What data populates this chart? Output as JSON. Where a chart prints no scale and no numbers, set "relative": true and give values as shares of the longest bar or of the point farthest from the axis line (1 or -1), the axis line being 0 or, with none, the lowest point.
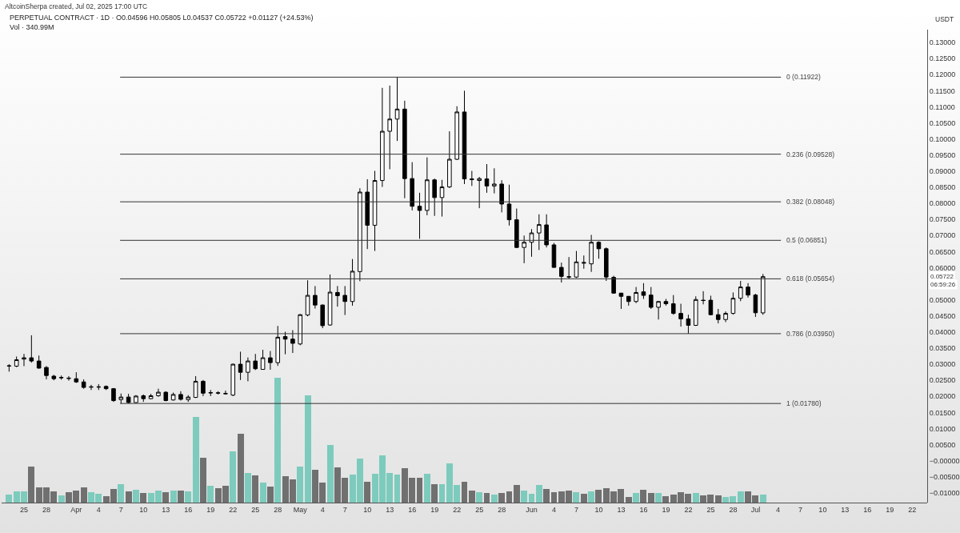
{
  "chart_data": [
    {
      "type": "candlestick",
      "title": "PERPETUAL CONTRACT · 1D · O0.04596 H0.05805 L0.04537 C0.05722 +0.01127 (+24.53%)",
      "subtitle": "Vol · 340.99M",
      "ylabel": "USDT",
      "annotations": [
        "AltcoinSherpa created, Jul 02, 2025 17:00 UTC",
        {
          "text": "0.05722",
          "y": 0.05722
        },
        "06:59:26"
      ],
      "tick_labels": "y",
      "xlim": [
        "2025-03-22",
        "2025-07-24"
      ],
      "ylim": [
        -0.013,
        0.134
      ],
      "yticks": [
        {
          "value": 0.13,
          "label": "0.13000"
        },
        {
          "value": 0.125,
          "label": "0.12500"
        },
        {
          "value": 0.12,
          "label": "0.12000"
        },
        {
          "value": 0.115,
          "label": "0.11500"
        },
        {
          "value": 0.11,
          "label": "0.11000"
        },
        {
          "value": 0.105,
          "label": "0.10500"
        },
        {
          "value": 0.1,
          "label": "0.10000"
        },
        {
          "value": 0.095,
          "label": "0.09500"
        },
        {
          "value": 0.09,
          "label": "0.09000"
        },
        {
          "value": 0.085,
          "label": "0.08500"
        },
        {
          "value": 0.08,
          "label": "0.08000"
        },
        {
          "value": 0.075,
          "label": "0.07500"
        },
        {
          "value": 0.07,
          "label": "0.07000"
        },
        {
          "value": 0.065,
          "label": "0.06500"
        },
        {
          "value": 0.06,
          "label": "0.06000"
        },
        {
          "value": 0.05,
          "label": "0.05000"
        },
        {
          "value": 0.045,
          "label": "0.04500"
        },
        {
          "value": 0.04,
          "label": "0.04000"
        },
        {
          "value": 0.035,
          "label": "0.03500"
        },
        {
          "value": 0.03,
          "label": "0.03000"
        },
        {
          "value": 0.025,
          "label": "0.02500"
        },
        {
          "value": 0.02,
          "label": "0.02000"
        },
        {
          "value": 0.015,
          "label": "0.01500"
        },
        {
          "value": 0.01,
          "label": "0.01000"
        },
        {
          "value": 0.005,
          "label": "0.00500"
        },
        {
          "value": 0,
          "label": "−0.00000"
        },
        {
          "value": -0.005,
          "label": "−0.00500"
        },
        {
          "value": -0.01,
          "label": "−0.01000"
        }
      ],
      "ref_lines": [
        {
          "axis": "y",
          "value": 0.11922,
          "label": "0 (0.11922)",
          "color": "#333333"
        },
        {
          "axis": "y",
          "value": 0.09528,
          "label": "0.236 (0.09528)",
          "color": "#333333"
        },
        {
          "axis": "y",
          "value": 0.08048,
          "label": "0.382 (0.08048)",
          "color": "#333333"
        },
        {
          "axis": "y",
          "value": 0.06851,
          "label": "0.5 (0.06851)",
          "color": "#333333"
        },
        {
          "axis": "y",
          "value": 0.05654,
          "label": "0.618 (0.05654)",
          "color": "#333333"
        },
        {
          "axis": "y",
          "value": 0.0395,
          "label": "0.786 (0.03950)",
          "color": "#333333"
        },
        {
          "axis": "y",
          "value": 0.0178,
          "label": "1 (0.01780)",
          "color": "#333333"
        }
      ],
      "x": [
        "2025-03-23",
        "2025-03-24",
        "2025-03-25",
        "2025-03-26",
        "2025-03-27",
        "2025-03-28",
        "2025-03-29",
        "2025-03-30",
        "2025-03-31",
        "2025-04-01",
        "2025-04-02",
        "2025-04-03",
        "2025-04-04",
        "2025-04-05",
        "2025-04-06",
        "2025-04-07",
        "2025-04-08",
        "2025-04-09",
        "2025-04-10",
        "2025-04-11",
        "2025-04-12",
        "2025-04-13",
        "2025-04-14",
        "2025-04-15",
        "2025-04-16",
        "2025-04-17",
        "2025-04-18",
        "2025-04-19",
        "2025-04-20",
        "2025-04-21",
        "2025-04-22",
        "2025-04-23",
        "2025-04-24",
        "2025-04-25",
        "2025-04-26",
        "2025-04-27",
        "2025-04-28",
        "2025-04-29",
        "2025-04-30",
        "2025-05-01",
        "2025-05-02",
        "2025-05-03",
        "2025-05-04",
        "2025-05-05",
        "2025-05-06",
        "2025-05-07",
        "2025-05-08",
        "2025-05-09",
        "2025-05-10",
        "2025-05-11",
        "2025-05-12",
        "2025-05-13",
        "2025-05-14",
        "2025-05-15",
        "2025-05-16",
        "2025-05-17",
        "2025-05-18",
        "2025-05-19",
        "2025-05-20",
        "2025-05-21",
        "2025-05-22",
        "2025-05-23",
        "2025-05-24",
        "2025-05-25",
        "2025-05-26",
        "2025-05-27",
        "2025-05-28",
        "2025-05-29",
        "2025-05-30",
        "2025-05-31",
        "2025-06-01",
        "2025-06-02",
        "2025-06-03",
        "2025-06-04",
        "2025-06-05",
        "2025-06-06",
        "2025-06-07",
        "2025-06-08",
        "2025-06-09",
        "2025-06-10",
        "2025-06-11",
        "2025-06-12",
        "2025-06-13",
        "2025-06-14",
        "2025-06-15",
        "2025-06-16",
        "2025-06-17",
        "2025-06-18",
        "2025-06-19",
        "2025-06-20",
        "2025-06-21",
        "2025-06-22",
        "2025-06-23",
        "2025-06-24",
        "2025-06-25",
        "2025-06-26",
        "2025-06-27",
        "2025-06-28",
        "2025-06-29",
        "2025-06-30",
        "2025-07-01",
        "2025-07-02"
      ],
      "ohlc": [
        [
          0.0294,
          0.03,
          0.0277,
          0.0295
        ],
        [
          0.0294,
          0.0324,
          0.0291,
          0.0314
        ],
        [
          0.0316,
          0.0332,
          0.0294,
          0.032
        ],
        [
          0.032,
          0.039,
          0.0305,
          0.031
        ],
        [
          0.031,
          0.0327,
          0.0286,
          0.0288
        ],
        [
          0.029,
          0.0294,
          0.0253,
          0.0265
        ],
        [
          0.0263,
          0.0267,
          0.025,
          0.0255
        ],
        [
          0.0259,
          0.0265,
          0.0252,
          0.0258
        ],
        [
          0.0257,
          0.0263,
          0.0249,
          0.0256
        ],
        [
          0.0255,
          0.0275,
          0.0242,
          0.0245
        ],
        [
          0.0245,
          0.0253,
          0.0224,
          0.0228
        ],
        [
          0.023,
          0.0236,
          0.022,
          0.0229
        ],
        [
          0.023,
          0.0238,
          0.022,
          0.0229
        ],
        [
          0.0231,
          0.0234,
          0.022,
          0.0224
        ],
        [
          0.0224,
          0.0226,
          0.0183,
          0.0187
        ],
        [
          0.019,
          0.0209,
          0.0178,
          0.0198
        ],
        [
          0.0198,
          0.0208,
          0.0179,
          0.0181
        ],
        [
          0.0181,
          0.0204,
          0.018,
          0.0201
        ],
        [
          0.0202,
          0.0206,
          0.0183,
          0.0193
        ],
        [
          0.0193,
          0.0208,
          0.0191,
          0.0202
        ],
        [
          0.0202,
          0.0224,
          0.0199,
          0.0213
        ],
        [
          0.0213,
          0.0216,
          0.0185,
          0.0187
        ],
        [
          0.0189,
          0.0212,
          0.0187,
          0.0206
        ],
        [
          0.0206,
          0.0216,
          0.0187,
          0.0191
        ],
        [
          0.019,
          0.0204,
          0.0183,
          0.0198
        ],
        [
          0.0197,
          0.0263,
          0.0195,
          0.0247
        ],
        [
          0.0247,
          0.0251,
          0.0201,
          0.021
        ],
        [
          0.0212,
          0.022,
          0.0201,
          0.0211
        ],
        [
          0.021,
          0.0216,
          0.0206,
          0.0211
        ],
        [
          0.0208,
          0.0218,
          0.0206,
          0.0209
        ],
        [
          0.0204,
          0.0302,
          0.0201,
          0.03
        ],
        [
          0.03,
          0.0339,
          0.0251,
          0.0275
        ],
        [
          0.0275,
          0.0321,
          0.0247,
          0.031
        ],
        [
          0.031,
          0.0332,
          0.0282,
          0.0286
        ],
        [
          0.0284,
          0.0345,
          0.0283,
          0.032
        ],
        [
          0.032,
          0.0341,
          0.0283,
          0.0305
        ],
        [
          0.0305,
          0.0419,
          0.0295,
          0.0384
        ],
        [
          0.0386,
          0.0401,
          0.0331,
          0.0378
        ],
        [
          0.0378,
          0.0406,
          0.0335,
          0.0365
        ],
        [
          0.0363,
          0.0456,
          0.0359,
          0.0454
        ],
        [
          0.0453,
          0.0561,
          0.0449,
          0.0514
        ],
        [
          0.0514,
          0.0543,
          0.0473,
          0.0484
        ],
        [
          0.0484,
          0.0486,
          0.0412,
          0.042
        ],
        [
          0.0422,
          0.0579,
          0.042,
          0.0524
        ],
        [
          0.0523,
          0.0543,
          0.0479,
          0.0513
        ],
        [
          0.0514,
          0.0543,
          0.0453,
          0.0495
        ],
        [
          0.0495,
          0.0627,
          0.0482,
          0.0589
        ],
        [
          0.0588,
          0.0847,
          0.0558,
          0.0835
        ],
        [
          0.0835,
          0.0875,
          0.0658,
          0.0732
        ],
        [
          0.0732,
          0.0901,
          0.0652,
          0.0871
        ],
        [
          0.0871,
          0.1159,
          0.0851,
          0.1024
        ],
        [
          0.1024,
          0.1166,
          0.0906,
          0.1062
        ],
        [
          0.1062,
          0.11922,
          0.0994,
          0.1093
        ],
        [
          0.1093,
          0.1119,
          0.0816,
          0.0877
        ],
        [
          0.0877,
          0.0928,
          0.0778,
          0.0791
        ],
        [
          0.0791,
          0.0833,
          0.069,
          0.0778
        ],
        [
          0.0778,
          0.0943,
          0.0763,
          0.0873
        ],
        [
          0.0873,
          0.0877,
          0.0761,
          0.0818
        ],
        [
          0.0818,
          0.0873,
          0.0759,
          0.0851
        ],
        [
          0.0851,
          0.1024,
          0.0848,
          0.0937
        ],
        [
          0.0937,
          0.1102,
          0.0935,
          0.1084
        ],
        [
          0.1084,
          0.115,
          0.086,
          0.0876
        ],
        [
          0.0876,
          0.0901,
          0.0854,
          0.0874
        ],
        [
          0.0871,
          0.0882,
          0.0785,
          0.0877
        ],
        [
          0.0876,
          0.0922,
          0.0833,
          0.0854
        ],
        [
          0.0854,
          0.0909,
          0.0831,
          0.086
        ],
        [
          0.086,
          0.0872,
          0.0772,
          0.0798
        ],
        [
          0.0798,
          0.0858,
          0.0731,
          0.0749
        ],
        [
          0.0749,
          0.0784,
          0.0661,
          0.0663
        ],
        [
          0.0663,
          0.07,
          0.0614,
          0.0679
        ],
        [
          0.0679,
          0.072,
          0.0634,
          0.0708
        ],
        [
          0.0708,
          0.0766,
          0.0655,
          0.0734
        ],
        [
          0.0733,
          0.0766,
          0.0663,
          0.0671
        ],
        [
          0.0671,
          0.0677,
          0.06,
          0.0601
        ],
        [
          0.0601,
          0.0616,
          0.0554,
          0.0573
        ],
        [
          0.0572,
          0.0633,
          0.0565,
          0.0571
        ],
        [
          0.0571,
          0.0652,
          0.0568,
          0.0618
        ],
        [
          0.0614,
          0.0638,
          0.0597,
          0.0616
        ],
        [
          0.0612,
          0.0702,
          0.0587,
          0.0679
        ],
        [
          0.0679,
          0.0682,
          0.0628,
          0.0659
        ],
        [
          0.0659,
          0.0663,
          0.0559,
          0.0571
        ],
        [
          0.057,
          0.0575,
          0.0519,
          0.0521
        ],
        [
          0.0521,
          0.0522,
          0.0472,
          0.0511
        ],
        [
          0.0511,
          0.0512,
          0.0482,
          0.0495
        ],
        [
          0.0495,
          0.054,
          0.049,
          0.0523
        ],
        [
          0.0525,
          0.0552,
          0.0503,
          0.0514
        ],
        [
          0.0515,
          0.054,
          0.0472,
          0.0477
        ],
        [
          0.0477,
          0.0496,
          0.0439,
          0.0495
        ],
        [
          0.0495,
          0.0503,
          0.0482,
          0.0488
        ],
        [
          0.0488,
          0.0515,
          0.0454,
          0.0458
        ],
        [
          0.0458,
          0.0488,
          0.0417,
          0.0441
        ],
        [
          0.0441,
          0.0454,
          0.0395,
          0.0421
        ],
        [
          0.0421,
          0.0511,
          0.0419,
          0.0501
        ],
        [
          0.0499,
          0.0527,
          0.0486,
          0.0498
        ],
        [
          0.0499,
          0.0513,
          0.0452,
          0.0454
        ],
        [
          0.0454,
          0.0472,
          0.0427,
          0.0439
        ],
        [
          0.0439,
          0.0464,
          0.0431,
          0.0458
        ],
        [
          0.0458,
          0.0523,
          0.0454,
          0.0505
        ],
        [
          0.0505,
          0.0559,
          0.0496,
          0.054
        ],
        [
          0.054,
          0.0552,
          0.0507,
          0.0515
        ],
        [
          0.0515,
          0.0519,
          0.0447,
          0.046
        ],
        [
          0.04596,
          0.05805,
          0.04537,
          0.05722
        ]
      ]
    },
    {
      "type": "bar",
      "relative": true,
      "tick_labels": "x",
      "xlim": [
        "2025-03-22",
        "2025-07-24"
      ],
      "xticks": [
        {
          "value": "2025-03-25",
          "label": "25"
        },
        {
          "value": "2025-03-28",
          "label": "28"
        },
        {
          "value": "2025-04-01",
          "label": "Apr"
        },
        {
          "value": "2025-04-04",
          "label": "4"
        },
        {
          "value": "2025-04-07",
          "label": "7"
        },
        {
          "value": "2025-04-10",
          "label": "10"
        },
        {
          "value": "2025-04-13",
          "label": "13"
        },
        {
          "value": "2025-04-16",
          "label": "16"
        },
        {
          "value": "2025-04-19",
          "label": "19"
        },
        {
          "value": "2025-04-22",
          "label": "22"
        },
        {
          "value": "2025-04-25",
          "label": "25"
        },
        {
          "value": "2025-04-28",
          "label": "28"
        },
        {
          "value": "2025-05-01",
          "label": "May"
        },
        {
          "value": "2025-05-04",
          "label": "4"
        },
        {
          "value": "2025-05-07",
          "label": "7"
        },
        {
          "value": "2025-05-10",
          "label": "10"
        },
        {
          "value": "2025-05-13",
          "label": "13"
        },
        {
          "value": "2025-05-16",
          "label": "16"
        },
        {
          "value": "2025-05-19",
          "label": "19"
        },
        {
          "value": "2025-05-22",
          "label": "22"
        },
        {
          "value": "2025-05-25",
          "label": "25"
        },
        {
          "value": "2025-05-28",
          "label": "28"
        },
        {
          "value": "2025-06-01",
          "label": "Jun"
        },
        {
          "value": "2025-06-04",
          "label": "4"
        },
        {
          "value": "2025-06-07",
          "label": "7"
        },
        {
          "value": "2025-06-10",
          "label": "10"
        },
        {
          "value": "2025-06-13",
          "label": "13"
        },
        {
          "value": "2025-06-16",
          "label": "16"
        },
        {
          "value": "2025-06-19",
          "label": "19"
        },
        {
          "value": "2025-06-22",
          "label": "22"
        },
        {
          "value": "2025-06-25",
          "label": "25"
        },
        {
          "value": "2025-06-28",
          "label": "28"
        },
        {
          "value": "2025-07-01",
          "label": "Jul"
        },
        {
          "value": "2025-07-04",
          "label": "4"
        },
        {
          "value": "2025-07-07",
          "label": "7"
        },
        {
          "value": "2025-07-10",
          "label": "10"
        },
        {
          "value": "2025-07-13",
          "label": "13"
        },
        {
          "value": "2025-07-16",
          "label": "16"
        },
        {
          "value": "2025-07-19",
          "label": "19"
        },
        {
          "value": "2025-07-22",
          "label": "22"
        }
      ],
      "x": [
        "2025-03-23",
        "2025-03-24",
        "2025-03-25",
        "2025-03-26",
        "2025-03-27",
        "2025-03-28",
        "2025-03-29",
        "2025-03-30",
        "2025-03-31",
        "2025-04-01",
        "2025-04-02",
        "2025-04-03",
        "2025-04-04",
        "2025-04-05",
        "2025-04-06",
        "2025-04-07",
        "2025-04-08",
        "2025-04-09",
        "2025-04-10",
        "2025-04-11",
        "2025-04-12",
        "2025-04-13",
        "2025-04-14",
        "2025-04-15",
        "2025-04-16",
        "2025-04-17",
        "2025-04-18",
        "2025-04-19",
        "2025-04-20",
        "2025-04-21",
        "2025-04-22",
        "2025-04-23",
        "2025-04-24",
        "2025-04-25",
        "2025-04-26",
        "2025-04-27",
        "2025-04-28",
        "2025-04-29",
        "2025-04-30",
        "2025-05-01",
        "2025-05-02",
        "2025-05-03",
        "2025-05-04",
        "2025-05-05",
        "2025-05-06",
        "2025-05-07",
        "2025-05-08",
        "2025-05-09",
        "2025-05-10",
        "2025-05-11",
        "2025-05-12",
        "2025-05-13",
        "2025-05-14",
        "2025-05-15",
        "2025-05-16",
        "2025-05-17",
        "2025-05-18",
        "2025-05-19",
        "2025-05-20",
        "2025-05-21",
        "2025-05-22",
        "2025-05-23",
        "2025-05-24",
        "2025-05-25",
        "2025-05-26",
        "2025-05-27",
        "2025-05-28",
        "2025-05-29",
        "2025-05-30",
        "2025-05-31",
        "2025-06-01",
        "2025-06-02",
        "2025-06-03",
        "2025-06-04",
        "2025-06-05",
        "2025-06-06",
        "2025-06-07",
        "2025-06-08",
        "2025-06-09",
        "2025-06-10",
        "2025-06-11",
        "2025-06-12",
        "2025-06-13",
        "2025-06-14",
        "2025-06-15",
        "2025-06-16",
        "2025-06-17",
        "2025-06-18",
        "2025-06-19",
        "2025-06-20",
        "2025-06-21",
        "2025-06-22",
        "2025-06-23",
        "2025-06-24",
        "2025-06-25",
        "2025-06-26",
        "2025-06-27",
        "2025-06-28",
        "2025-06-29",
        "2025-06-30",
        "2025-07-01",
        "2025-07-02"
      ],
      "values": [
        0.065,
        0.087,
        0.091,
        0.29,
        0.12,
        0.12,
        0.09,
        0.058,
        0.084,
        0.097,
        0.123,
        0.082,
        0.069,
        0.052,
        0.108,
        0.145,
        0.091,
        0.1,
        0.074,
        0.074,
        0.095,
        0.082,
        0.093,
        0.093,
        0.089,
        0.686,
        0.361,
        0.134,
        0.117,
        0.132,
        0.411,
        0.55,
        0.24,
        0.216,
        0.16,
        0.128,
        1,
        0.21,
        0.184,
        0.29,
        0.86,
        0.26,
        0.16,
        0.46,
        0.285,
        0.197,
        0.225,
        0.353,
        0.167,
        0.232,
        0.376,
        0.239,
        0.227,
        0.278,
        0.2,
        0.2,
        0.23,
        0.148,
        0.148,
        0.311,
        0.139,
        0.167,
        0.093,
        0.084,
        0.074,
        0.065,
        0.076,
        0.087,
        0.14,
        0.097,
        0.071,
        0.14,
        0.108,
        0.082,
        0.091,
        0.097,
        0.082,
        0.069,
        0.091,
        0.1,
        0.115,
        0.087,
        0.108,
        0.048,
        0.08,
        0.104,
        0.074,
        0.074,
        0.052,
        0.065,
        0.082,
        0.071,
        0.074,
        0.058,
        0.065,
        0.058,
        0.048,
        0.052,
        0.091,
        0.091,
        0.056,
        0.065
      ],
      "colors": [
        "#7dcbbd",
        "#7dcbbd",
        "#7dcbbd",
        "#707070",
        "#707070",
        "#707070",
        "#707070",
        "#7dcbbd",
        "#707070",
        "#707070",
        "#707070",
        "#7dcbbd",
        "#7dcbbd",
        "#707070",
        "#707070",
        "#7dcbbd",
        "#707070",
        "#7dcbbd",
        "#707070",
        "#7dcbbd",
        "#7dcbbd",
        "#707070",
        "#7dcbbd",
        "#707070",
        "#7dcbbd",
        "#7dcbbd",
        "#707070",
        "#7dcbbd",
        "#707070",
        "#707070",
        "#7dcbbd",
        "#707070",
        "#7dcbbd",
        "#707070",
        "#7dcbbd",
        "#707070",
        "#7dcbbd",
        "#707070",
        "#707070",
        "#7dcbbd",
        "#7dcbbd",
        "#707070",
        "#707070",
        "#7dcbbd",
        "#707070",
        "#707070",
        "#7dcbbd",
        "#7dcbbd",
        "#707070",
        "#7dcbbd",
        "#7dcbbd",
        "#7dcbbd",
        "#7dcbbd",
        "#707070",
        "#707070",
        "#707070",
        "#7dcbbd",
        "#707070",
        "#7dcbbd",
        "#7dcbbd",
        "#7dcbbd",
        "#707070",
        "#707070",
        "#7dcbbd",
        "#707070",
        "#7dcbbd",
        "#707070",
        "#707070",
        "#707070",
        "#7dcbbd",
        "#7dcbbd",
        "#7dcbbd",
        "#707070",
        "#707070",
        "#707070",
        "#707070",
        "#7dcbbd",
        "#707070",
        "#7dcbbd",
        "#707070",
        "#707070",
        "#707070",
        "#707070",
        "#707070",
        "#7dcbbd",
        "#707070",
        "#707070",
        "#7dcbbd",
        "#707070",
        "#707070",
        "#707070",
        "#707070",
        "#7dcbbd",
        "#707070",
        "#707070",
        "#707070",
        "#7dcbbd",
        "#7dcbbd",
        "#7dcbbd",
        "#707070",
        "#707070",
        "#7dcbbd"
      ]
    }
  ]
}
